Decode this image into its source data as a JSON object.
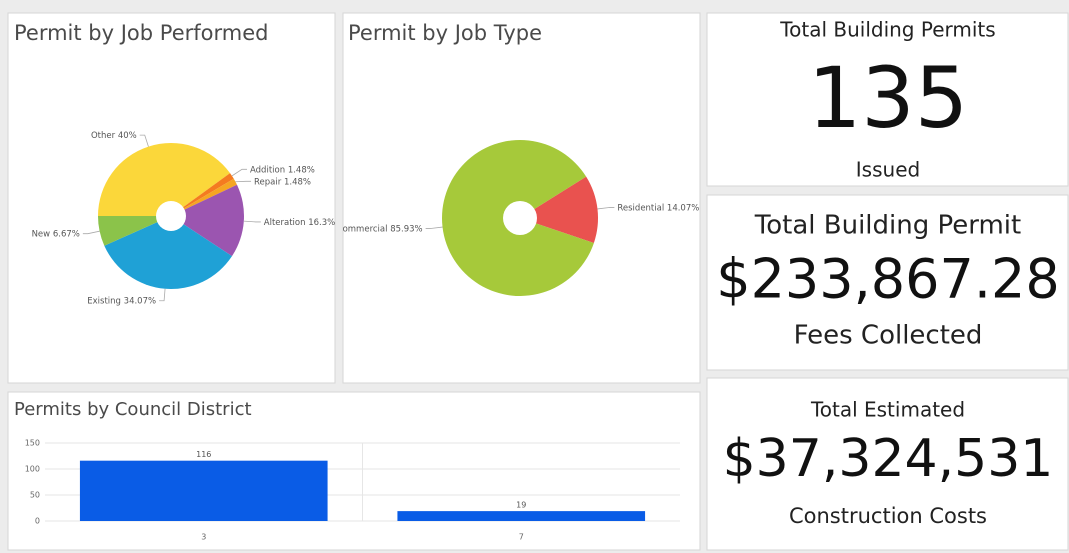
{
  "chart_data": [
    {
      "type": "pie",
      "title": "Permit by Job Performed",
      "categories": [
        "Other",
        "Addition",
        "Repair",
        "Alteration",
        "Existing",
        "New"
      ],
      "values": [
        40,
        1.48,
        1.48,
        16.3,
        34.07,
        6.67
      ],
      "value_labels": [
        "40%",
        "1.48%",
        "1.48%",
        "16.3%",
        "34.07%",
        "6.67%"
      ],
      "colors": [
        "#fbd73a",
        "#f47b20",
        "#f5a623",
        "#9b55b0",
        "#1fa1d6",
        "#8bc34a"
      ]
    },
    {
      "type": "pie",
      "title": "Permit by Job Type",
      "categories": [
        "Residential",
        "Commercial"
      ],
      "values": [
        14.07,
        85.93
      ],
      "value_labels": [
        "14.07%",
        "85.93%"
      ],
      "colors": [
        "#e9524f",
        "#a6c93a"
      ]
    },
    {
      "type": "bar",
      "title": "Permits by Council District",
      "categories": [
        "3",
        "7"
      ],
      "values": [
        116,
        19
      ],
      "color": "#0a5ce6",
      "ylim": [
        0,
        150
      ],
      "yticks": [
        0,
        50,
        100,
        150
      ],
      "grid": true
    }
  ],
  "indicators": [
    {
      "title": "Total Building Permits",
      "value": "135",
      "subtitle": "Issued"
    },
    {
      "title": "Total Building Permit",
      "value": "$233,867.28",
      "subtitle": "Fees Collected"
    },
    {
      "title": "Total Estimated",
      "value": "$37,324,531",
      "subtitle": "Construction Costs"
    }
  ]
}
